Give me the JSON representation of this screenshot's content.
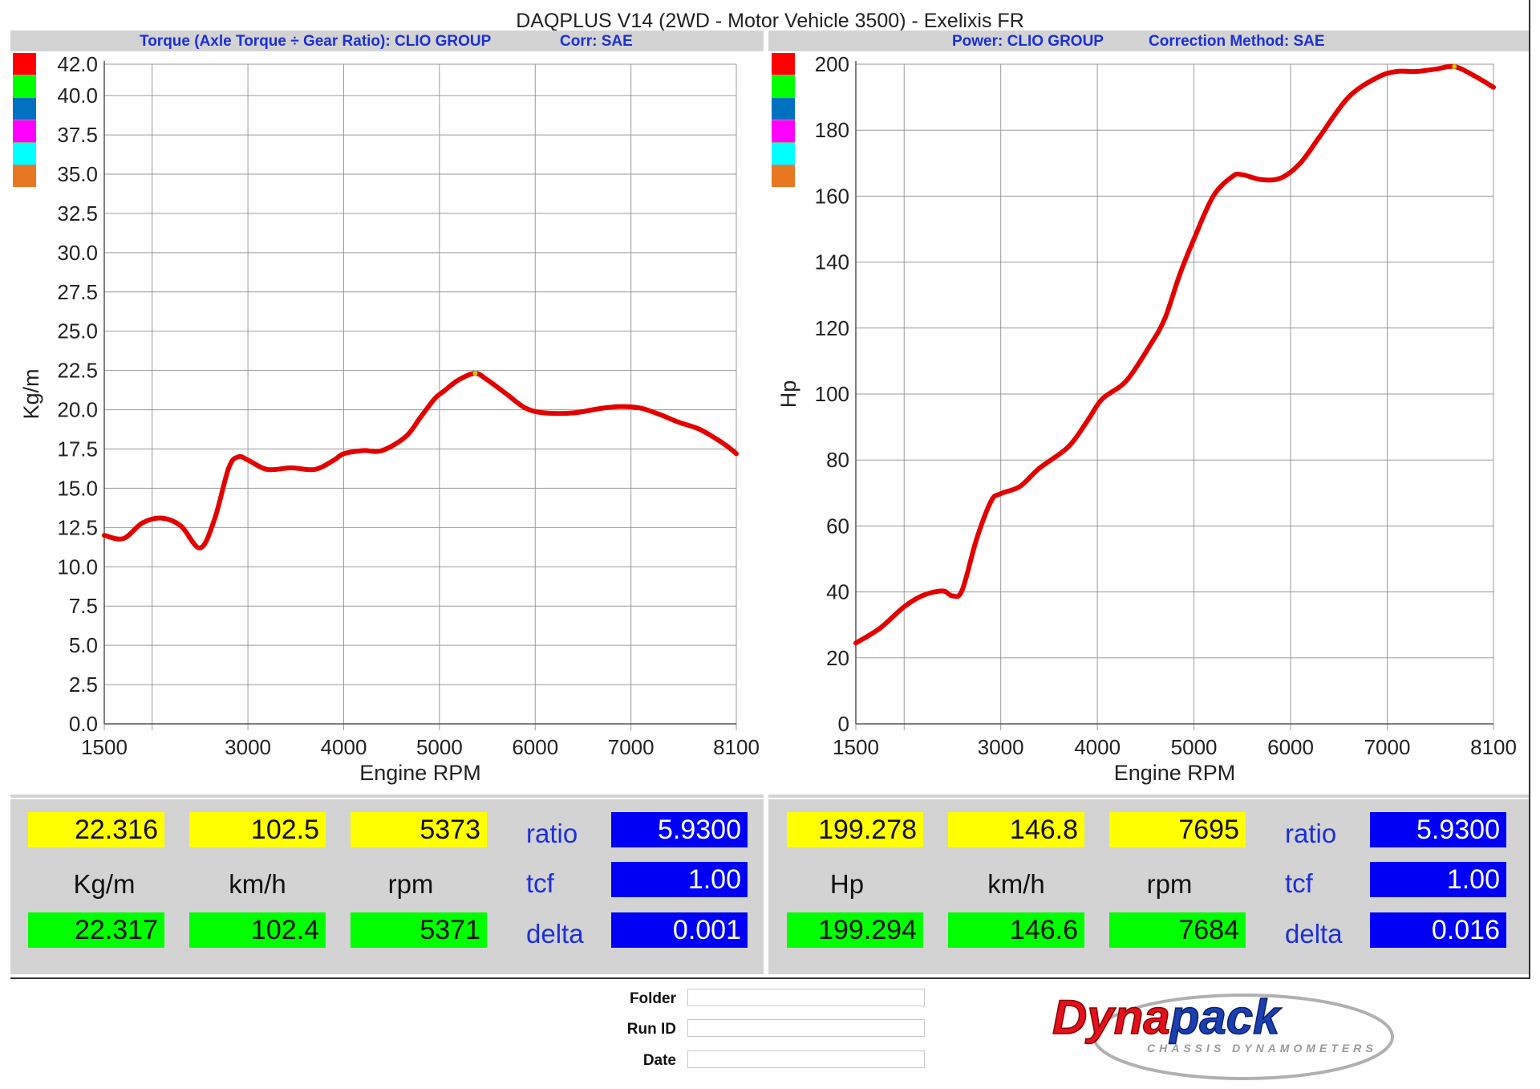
{
  "header": {
    "title": "DAQPLUS V14 (2WD - Motor Vehicle 3500) - Exelixis FR"
  },
  "left_panel": {
    "subtitle_left": "Torque (Axle Torque ÷ Gear Ratio): CLIO GROUP",
    "subtitle_right": "Corr: SAE",
    "readout": {
      "value_1": "22.316",
      "speed_1": "102.5",
      "rpm_1": "5373",
      "unit": "Kg/m",
      "speed_unit": "km/h",
      "rpm_unit": "rpm",
      "value_2": "22.317",
      "speed_2": "102.4",
      "rpm_2": "5371",
      "ratio_label": "ratio",
      "ratio_value": "5.9300",
      "tcf_label": "tcf",
      "tcf_value": "1.00",
      "delta_label": "delta",
      "delta_value": "0.001"
    }
  },
  "right_panel": {
    "subtitle_left": "Power: CLIO GROUP",
    "subtitle_right": "Correction Method: SAE",
    "readout": {
      "value_1": "199.278",
      "speed_1": "146.8",
      "rpm_1": "7695",
      "unit": "Hp",
      "speed_unit": "km/h",
      "rpm_unit": "rpm",
      "value_2": "199.294",
      "speed_2": "146.6",
      "rpm_2": "7684",
      "ratio_label": "ratio",
      "ratio_value": "5.9300",
      "tcf_label": "tcf",
      "tcf_value": "1.00",
      "delta_label": "delta",
      "delta_value": "0.016"
    }
  },
  "legend_swatch_colors": [
    "#ff0000",
    "#00ff00",
    "#0070c0",
    "#ff00ff",
    "#00ffff",
    "#e87722"
  ],
  "footer": {
    "folder_label": "Folder",
    "run_id_label": "Run ID",
    "date_label": "Date",
    "logo_text": "Dynapack",
    "logo_subtext": "CHASSIS DYNAMOMETERS"
  },
  "chart_data": [
    {
      "type": "line",
      "xlabel": "Engine RPM",
      "ylabel": "Kg/m",
      "x_ticks": [
        "1500",
        "3000",
        "4000",
        "5000",
        "6000",
        "7000",
        "8100"
      ],
      "y_ticks": [
        "0.0",
        "2.5",
        "5.0",
        "7.5",
        "10.0",
        "12.5",
        "15.0",
        "17.5",
        "20.0",
        "22.5",
        "25.0",
        "27.5",
        "30.0",
        "32.5",
        "35.0",
        "37.5",
        "40.0",
        "42.0"
      ],
      "xlim": [
        1500,
        8100
      ],
      "ylim": [
        0,
        42
      ],
      "grid": true,
      "line_color": "#e30000",
      "marker": {
        "x": 5373,
        "y": 22.316
      },
      "series": [
        {
          "x": [
            1500,
            1700,
            1900,
            2100,
            2300,
            2500,
            2650,
            2800,
            2900,
            3000,
            3200,
            3450,
            3700,
            3900,
            4000,
            4200,
            4400,
            4650,
            4800,
            4950,
            5050,
            5200,
            5373,
            5500,
            5700,
            5900,
            6100,
            6400,
            6700,
            6900,
            7100,
            7300,
            7500,
            7700,
            7850,
            8000,
            8100
          ],
          "y": [
            12.0,
            11.8,
            12.8,
            13.1,
            12.6,
            11.2,
            13.0,
            16.3,
            17.0,
            16.8,
            16.2,
            16.3,
            16.2,
            16.8,
            17.2,
            17.4,
            17.4,
            18.3,
            19.5,
            20.7,
            21.2,
            21.9,
            22.316,
            21.9,
            21.0,
            20.1,
            19.8,
            19.8,
            20.1,
            20.2,
            20.1,
            19.7,
            19.2,
            18.8,
            18.3,
            17.7,
            17.2
          ]
        }
      ]
    },
    {
      "type": "line",
      "xlabel": "Engine RPM",
      "ylabel": "Hp",
      "x_ticks": [
        "1500",
        "3000",
        "4000",
        "5000",
        "6000",
        "7000",
        "8100"
      ],
      "y_ticks": [
        "0",
        "20",
        "40",
        "60",
        "80",
        "100",
        "120",
        "140",
        "160",
        "180",
        "200"
      ],
      "xlim": [
        1500,
        8100
      ],
      "ylim": [
        0,
        200
      ],
      "grid": true,
      "line_color": "#e30000",
      "marker": {
        "x": 7695,
        "y": 199.278
      },
      "series": [
        {
          "x": [
            1500,
            1750,
            2000,
            2200,
            2400,
            2500,
            2600,
            2750,
            2900,
            3000,
            3200,
            3400,
            3700,
            3900,
            4050,
            4300,
            4550,
            4700,
            4850,
            5000,
            5200,
            5400,
            5500,
            5700,
            5900,
            6100,
            6300,
            6600,
            6900,
            7100,
            7300,
            7500,
            7695,
            7900,
            8100
          ],
          "y": [
            24.5,
            29.0,
            35.5,
            39.0,
            40.3,
            38.8,
            40.5,
            56.0,
            67.5,
            69.8,
            72.0,
            77.5,
            84.0,
            92.0,
            98.5,
            104.0,
            115.0,
            123.0,
            136.0,
            147.0,
            160.0,
            166.0,
            166.5,
            165.0,
            165.5,
            170.0,
            178.0,
            190.0,
            196.0,
            197.8,
            197.8,
            198.5,
            199.278,
            196.5,
            193.0
          ]
        }
      ]
    }
  ]
}
